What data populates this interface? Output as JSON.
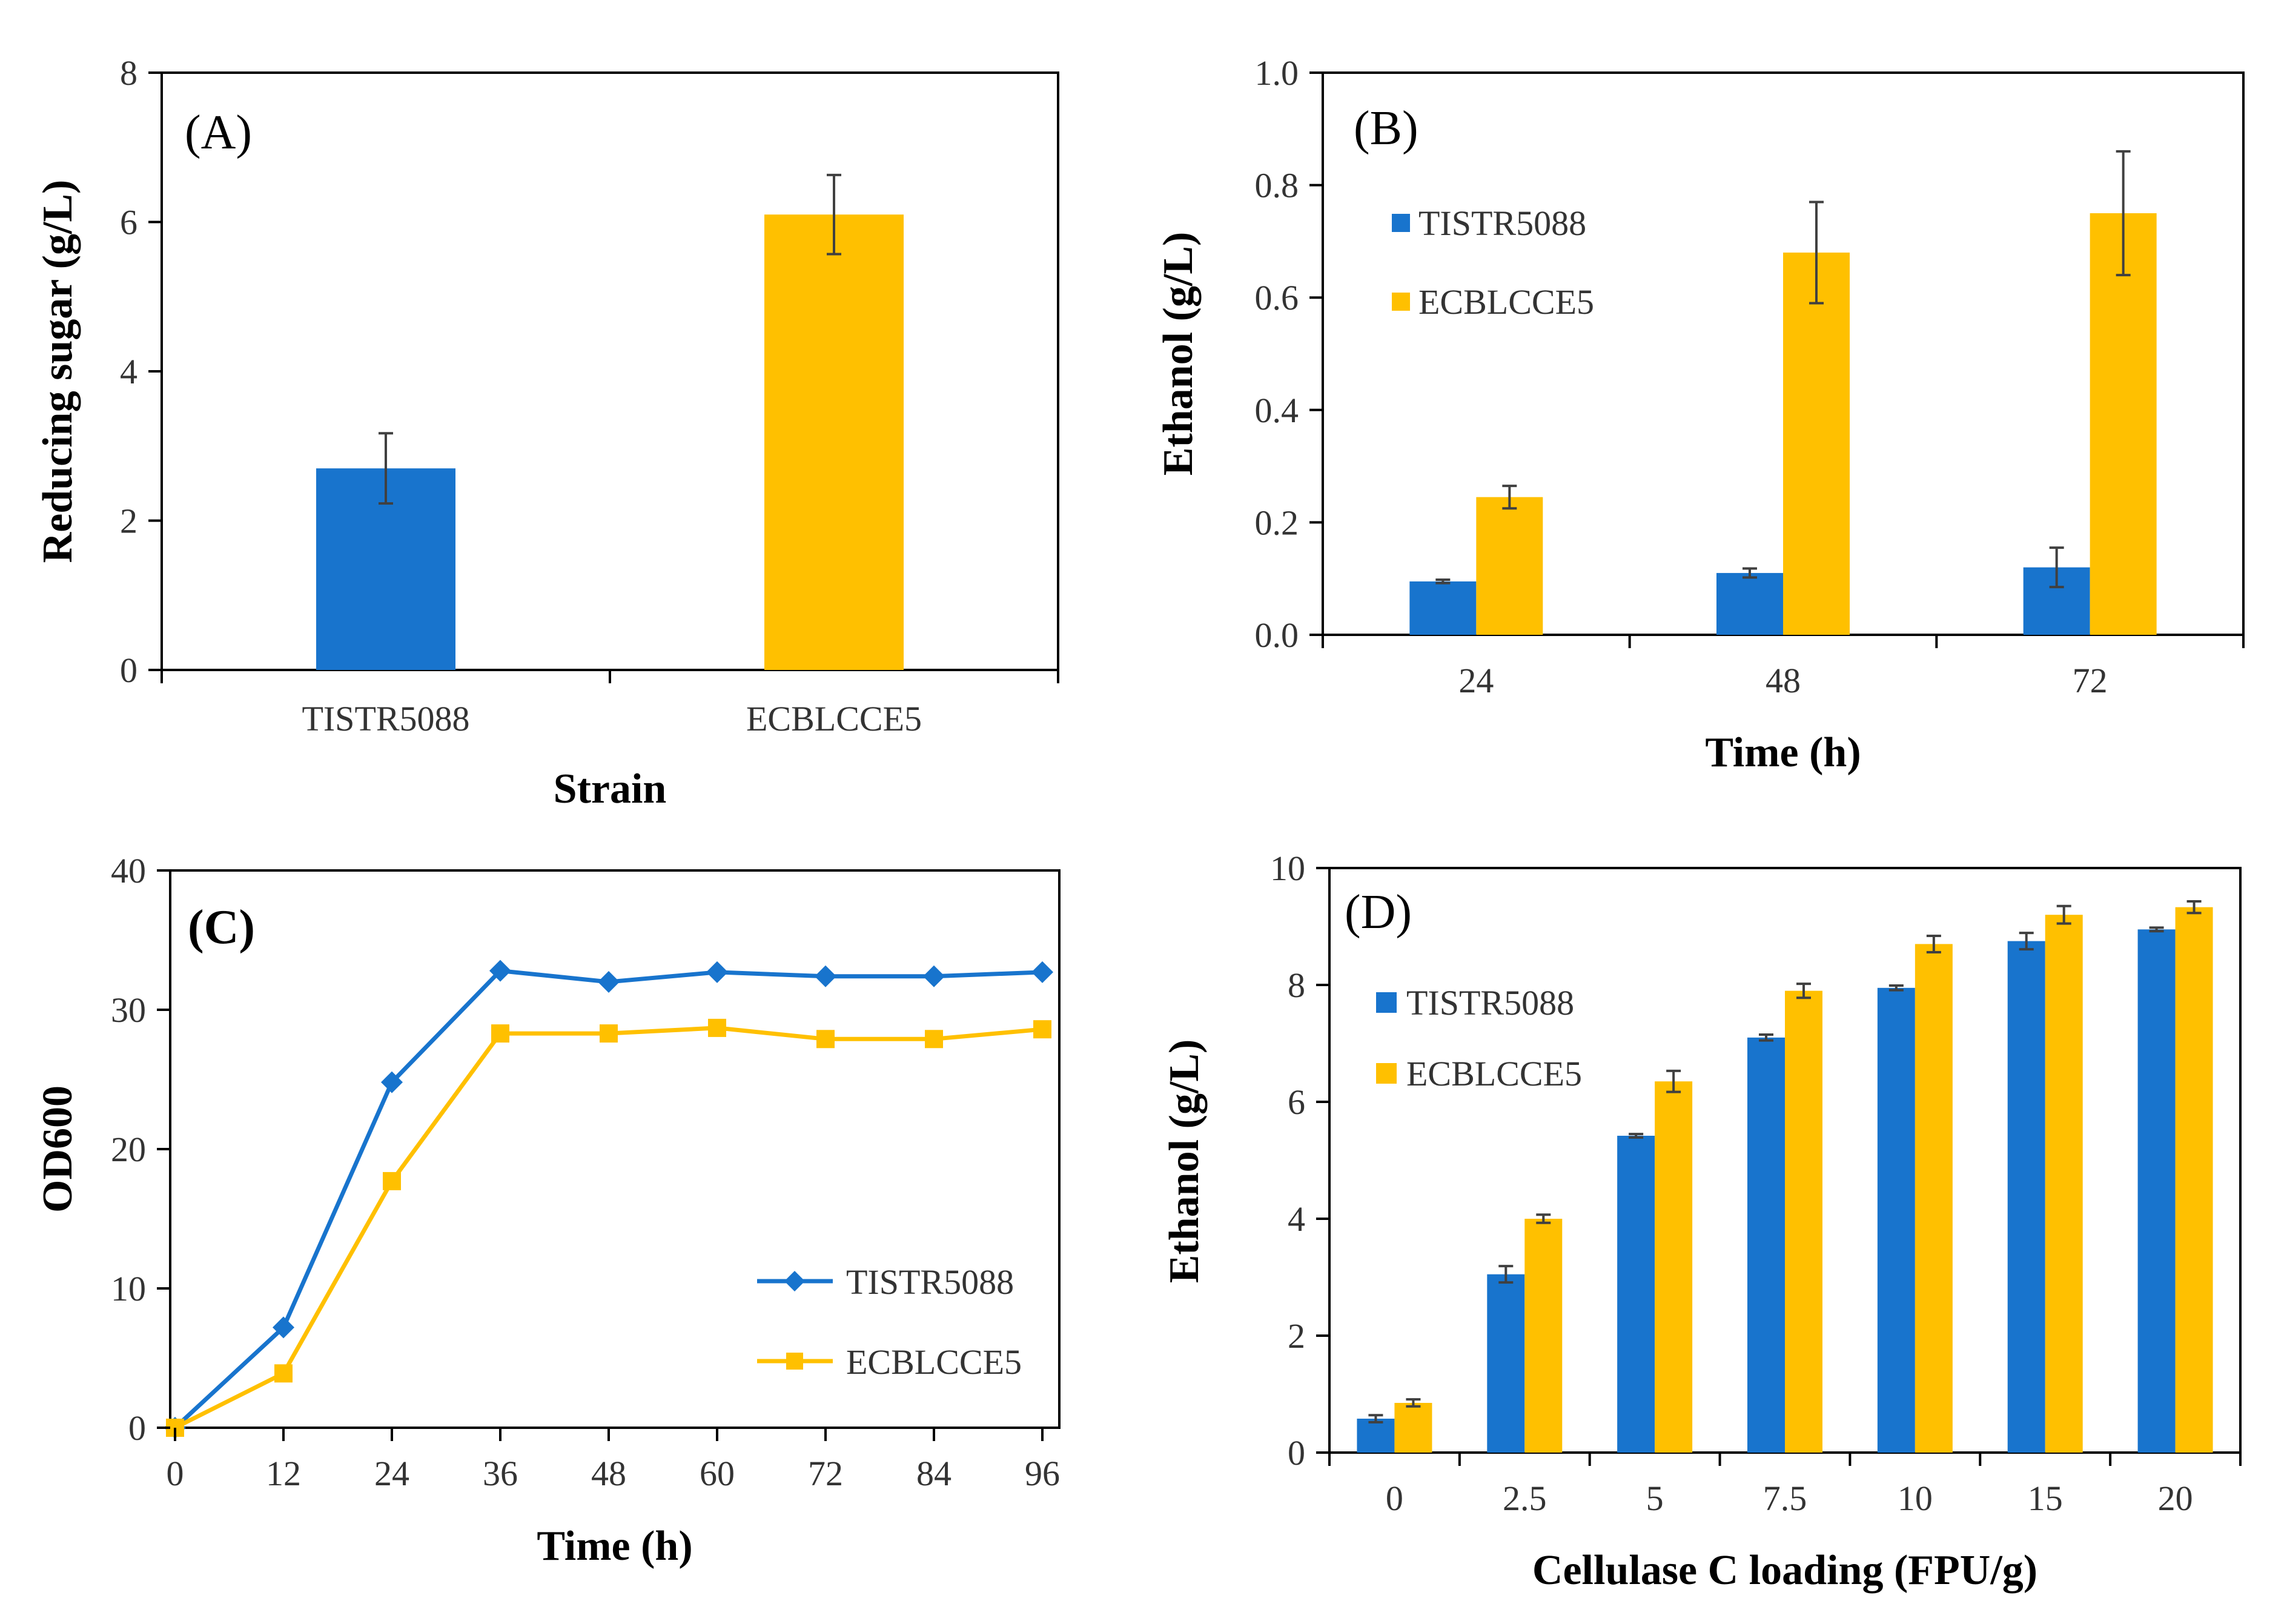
{
  "colors": {
    "tistr": "#1874CD",
    "ecbl": "#FFC000",
    "axis": "#000000",
    "error": "#404040"
  },
  "chart_data": [
    {
      "id": "A",
      "type": "bar",
      "panel_label": "(A)",
      "categories": [
        "TISTR5088",
        "ECBLCCE5"
      ],
      "values": [
        2.7,
        6.1
      ],
      "errors": [
        0.47,
        0.53
      ],
      "bar_colors": [
        "#1874CD",
        "#FFC000"
      ],
      "xlabel": "Strain",
      "ylabel": "Reducing sugar (g/L)",
      "ylim": [
        0,
        8
      ],
      "yticks": [
        "0",
        "2",
        "4",
        "6",
        "8"
      ],
      "ytick_values": [
        0,
        2,
        4,
        6,
        8
      ]
    },
    {
      "id": "B",
      "type": "bar",
      "panel_label": "(B)",
      "categories": [
        "24",
        "48",
        "72"
      ],
      "series": [
        {
          "name": "TISTR5088",
          "color": "#1874CD",
          "values": [
            0.095,
            0.11,
            0.12
          ],
          "errors": [
            0.003,
            0.008,
            0.035
          ]
        },
        {
          "name": "ECBLCCE5",
          "color": "#FFC000",
          "values": [
            0.245,
            0.68,
            0.75
          ],
          "errors": [
            0.02,
            0.09,
            0.11
          ]
        }
      ],
      "xlabel": "Time (h)",
      "ylabel": "Ethanol  (g/L)",
      "ylim": [
        0,
        1.0
      ],
      "yticks": [
        "0.0",
        "0.2",
        "0.4",
        "0.6",
        "0.8",
        "1.0"
      ],
      "ytick_values": [
        0,
        0.2,
        0.4,
        0.6,
        0.8,
        1.0
      ],
      "legend": [
        "TISTR5088",
        "ECBLCCE5"
      ]
    },
    {
      "id": "C",
      "type": "line",
      "panel_label": "(C)",
      "x": [
        0,
        12,
        24,
        36,
        48,
        60,
        72,
        84,
        96
      ],
      "xticks": [
        "0",
        "12",
        "24",
        "36",
        "48",
        "60",
        "72",
        "84",
        "96"
      ],
      "series": [
        {
          "name": "TISTR5088",
          "color": "#1874CD",
          "marker": "diamond",
          "values": [
            0,
            7.2,
            24.8,
            32.8,
            32.0,
            32.7,
            32.4,
            32.4,
            32.7
          ]
        },
        {
          "name": "ECBLCCE5",
          "color": "#FFC000",
          "marker": "square",
          "values": [
            0,
            3.9,
            17.7,
            28.3,
            28.3,
            28.7,
            27.9,
            27.9,
            28.6
          ]
        }
      ],
      "xlabel": "Time (h)",
      "ylabel": "OD600",
      "xlim": [
        0,
        96
      ],
      "ylim": [
        0,
        40
      ],
      "yticks": [
        "0",
        "10",
        "20",
        "30",
        "40"
      ],
      "ytick_values": [
        0,
        10,
        20,
        30,
        40
      ],
      "legend": [
        "TISTR5088",
        "ECBLCCE5"
      ]
    },
    {
      "id": "D",
      "type": "bar",
      "panel_label": "(D)",
      "categories": [
        "0",
        "2.5",
        "5",
        "7.5",
        "10",
        "15",
        "20"
      ],
      "series": [
        {
          "name": "TISTR5088",
          "color": "#1874CD",
          "values": [
            0.58,
            3.05,
            5.42,
            7.1,
            7.95,
            8.75,
            8.95
          ],
          "errors": [
            0.06,
            0.14,
            0.03,
            0.05,
            0.04,
            0.14,
            0.03
          ]
        },
        {
          "name": "ECBLCCE5",
          "color": "#FFC000",
          "values": [
            0.85,
            4.0,
            6.35,
            7.9,
            8.7,
            9.2,
            9.33
          ],
          "errors": [
            0.06,
            0.07,
            0.18,
            0.12,
            0.14,
            0.15,
            0.1
          ]
        }
      ],
      "xlabel": "Cellulase C loading (FPU/g)",
      "ylabel": "Ethanol (g/L)",
      "ylim": [
        0,
        10
      ],
      "yticks": [
        "0",
        "2",
        "4",
        "6",
        "8",
        "10"
      ],
      "ytick_values": [
        0,
        2,
        4,
        6,
        8,
        10
      ],
      "legend": [
        "TISTR5088",
        "ECBLCCE5"
      ]
    }
  ]
}
